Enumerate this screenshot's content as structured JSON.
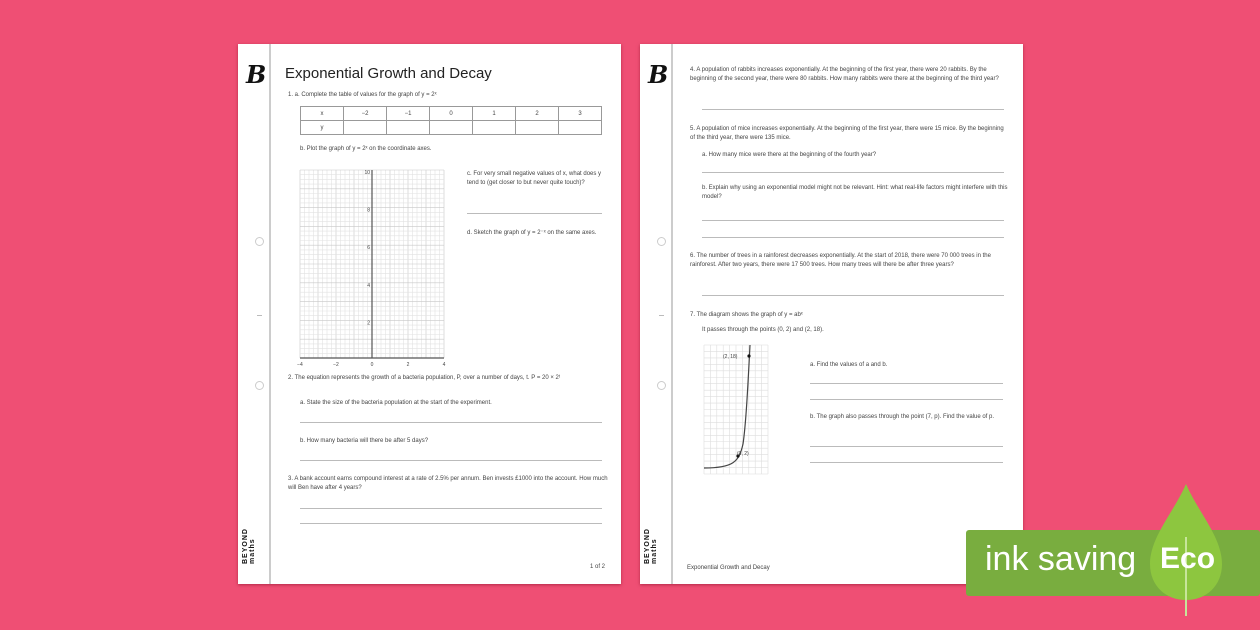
{
  "left_page": {
    "logo": "B",
    "brand": "BEYOND maths",
    "title": "Exponential Growth and Decay",
    "q1a": "1.  a.  Complete the table of values for the graph of y = 2ˣ",
    "table": {
      "row_x": [
        "x",
        "−2",
        "−1",
        "0",
        "1",
        "2",
        "3"
      ],
      "row_y": [
        "y",
        "",
        "",
        "",
        "",
        "",
        ""
      ]
    },
    "q1b": "b.  Plot the graph of y = 2ˣ on the coordinate axes.",
    "graph": {
      "x_ticks": [
        "−4",
        "−2",
        "0",
        "2",
        "4"
      ],
      "y_ticks": [
        "2",
        "4",
        "6",
        "8",
        "10"
      ]
    },
    "q1c": "c.  For very small negative values of x, what does y tend to (get closer to but never quite touch)?",
    "q1d": "d.  Sketch the graph of y = 2⁻ˣ on the same axes.",
    "q2": "2.  The equation represents the growth of a bacteria population, P, over a number of days, t. P = 20 × 2ᵗ",
    "q2a": "a.  State the size of the bacteria population at the start of the experiment.",
    "q2b": "b.  How many bacteria will there be after 5 days?",
    "q3": "3.  A bank account earns compound interest at a rate of 2.5% per annum. Ben invests £1000 into the account. How much will Ben have after 4 years?",
    "page_num": "1 of 2"
  },
  "right_page": {
    "logo": "B",
    "brand": "BEYOND maths",
    "q4": "4.  A population of rabbits increases exponentially. At the beginning of the first year, there were 20 rabbits. By the beginning of the second year, there were 80 rabbits. How many rabbits were there at the beginning of the third year?",
    "q5": "5.  A population of mice increases exponentially. At the beginning of the first year, there were 15 mice. By the beginning of the third year, there were 135 mice.",
    "q5a": "a.  How many mice were there at the beginning of the fourth year?",
    "q5b": "b.  Explain why using an exponential model might not be relevant. Hint: what real-life factors might interfere with this model?",
    "q6": "6.  The number of trees in a rainforest decreases exponentially. At the start of 2018, there were 70 000 trees in the rainforest. After two years, there were 17 500 trees. How many trees will there be after three years?",
    "q7": "7.  The diagram shows the graph of y = abˣ",
    "q7_sub": "It passes through the points (0, 2) and (2, 18).",
    "point_a": "(2, 18)",
    "point_b": "(0, 2)",
    "q7a": "a.  Find the values of a and b.",
    "q7b": "b.  The graph also passes through the point (7, p). Find the value of p.",
    "footer": "Exponential Growth and Decay"
  },
  "badge": {
    "text": "ink saving",
    "eco": "Eco",
    "green": "#79ad3f",
    "leaf": "#8dc63f"
  },
  "colors": {
    "background": "#ef4f74"
  }
}
